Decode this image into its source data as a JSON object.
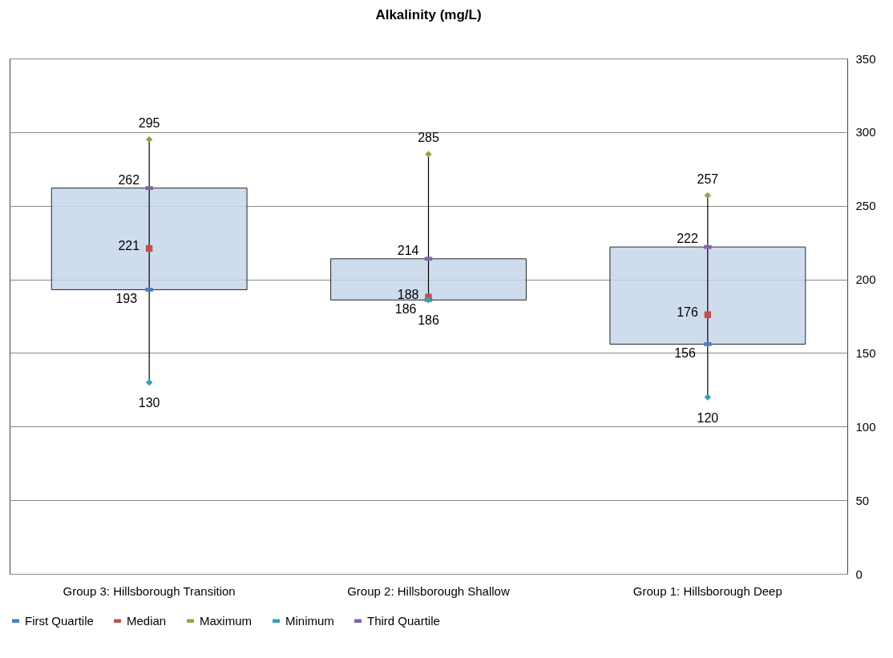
{
  "chart_data": {
    "type": "box",
    "title": "Alkalinity (mg/L)",
    "categories": [
      "Group 3: Hillsborough Transition",
      "Group 2: Hillsborough Shallow",
      "Group 1: Hillsborough Deep"
    ],
    "boxes": [
      {
        "low": 130,
        "q1": 193,
        "q3": 262,
        "high": 295
      },
      {
        "low": 186,
        "q1": 186,
        "q3": 214,
        "high": 285
      },
      {
        "low": 120,
        "q1": 156,
        "q3": 222,
        "high": 257
      }
    ],
    "color": "#c6d6ec",
    "series": [
      {
        "name": "First Quartile",
        "type": "scatter",
        "color": "#4a7ebb",
        "x": [
          "Group 3: Hillsborough Transition",
          "Group 2: Hillsborough Shallow",
          "Group 1: Hillsborough Deep"
        ],
        "values": [
          193,
          186,
          156
        ]
      },
      {
        "name": "Median",
        "type": "scatter",
        "marker": "square",
        "color": "#c0504d",
        "x": [
          "Group 3: Hillsborough Transition",
          "Group 2: Hillsborough Shallow",
          "Group 1: Hillsborough Deep"
        ],
        "values": [
          221,
          188,
          176
        ]
      },
      {
        "name": "Maximum",
        "type": "scatter",
        "marker": "diamond",
        "color": "#8fa74a",
        "x": [
          "Group 3: Hillsborough Transition",
          "Group 2: Hillsborough Shallow",
          "Group 1: Hillsborough Deep"
        ],
        "values": [
          295,
          285,
          257
        ]
      },
      {
        "name": "Minimum",
        "type": "scatter",
        "marker": "diamond",
        "color": "#31a0b8",
        "x": [
          "Group 3: Hillsborough Transition",
          "Group 2: Hillsborough Shallow",
          "Group 1: Hillsborough Deep"
        ],
        "values": [
          130,
          186,
          120
        ]
      },
      {
        "name": "Third Quartile",
        "type": "scatter",
        "color": "#8064a2",
        "x": [
          "Group 3: Hillsborough Transition",
          "Group 2: Hillsborough Shallow",
          "Group 1: Hillsborough Deep"
        ],
        "values": [
          262,
          214,
          222
        ]
      }
    ],
    "ylim": [
      0,
      350
    ],
    "yticks": [
      0,
      50,
      100,
      150,
      200,
      250,
      300,
      350
    ],
    "grid": "y",
    "legend": "bottom",
    "data_labels": true
  }
}
